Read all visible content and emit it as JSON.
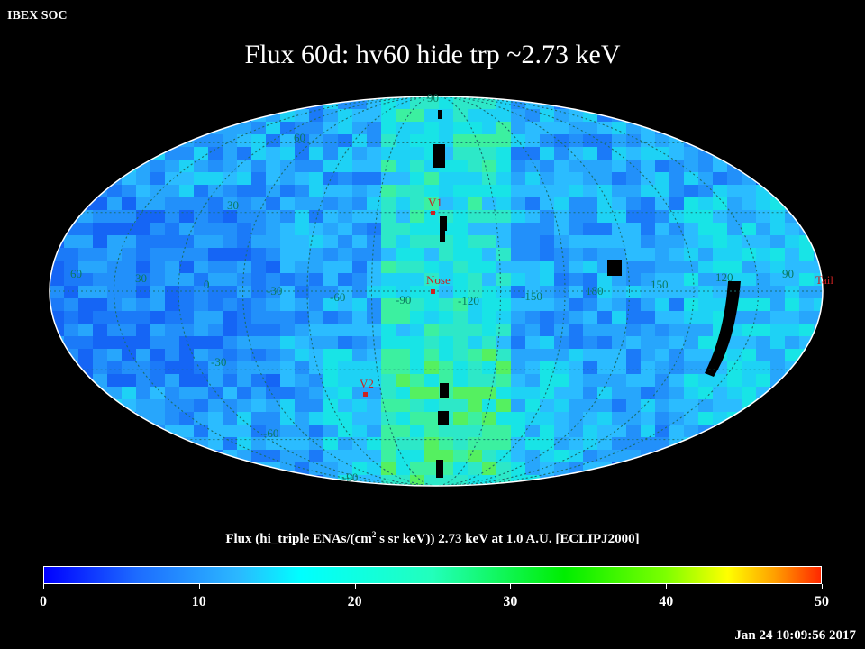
{
  "header": {
    "source": "IBEX SOC",
    "title": "Flux   60d: hv60 hide trp ~2.73 keV"
  },
  "map": {
    "projection": "Mollweide (all-sky)",
    "latitude_labels": [
      "90",
      "60",
      "30",
      "0",
      "-30",
      "-60",
      "-90"
    ],
    "longitude_labels": [
      "60",
      "30",
      "0",
      "-30",
      "-60",
      "-90",
      "-120",
      "-150",
      "180",
      "150",
      "120",
      "90"
    ],
    "markers": [
      {
        "name": "V1",
        "label": "V1",
        "color": "#cc2222"
      },
      {
        "name": "Nose",
        "label": "Nose",
        "color": "#cc2222"
      },
      {
        "name": "V2",
        "label": "V2",
        "color": "#cc2222"
      },
      {
        "name": "Tail",
        "label": "Tail",
        "color": "#cc2222"
      }
    ],
    "grid_color": "#1a6f6f",
    "label_color": "#0a7a60"
  },
  "colorbar": {
    "label_main": "Flux (hi_triple ENAs/(cm",
    "label_sup": "2",
    "label_rest": " s sr keV))  2.73 keV at 1.0 A.U. [ECLIPJ2000]",
    "ticks": [
      "0",
      "10",
      "20",
      "30",
      "40",
      "50"
    ],
    "range": [
      0,
      50
    ]
  },
  "timestamp": "Jan 24 10:09:56 2017"
}
